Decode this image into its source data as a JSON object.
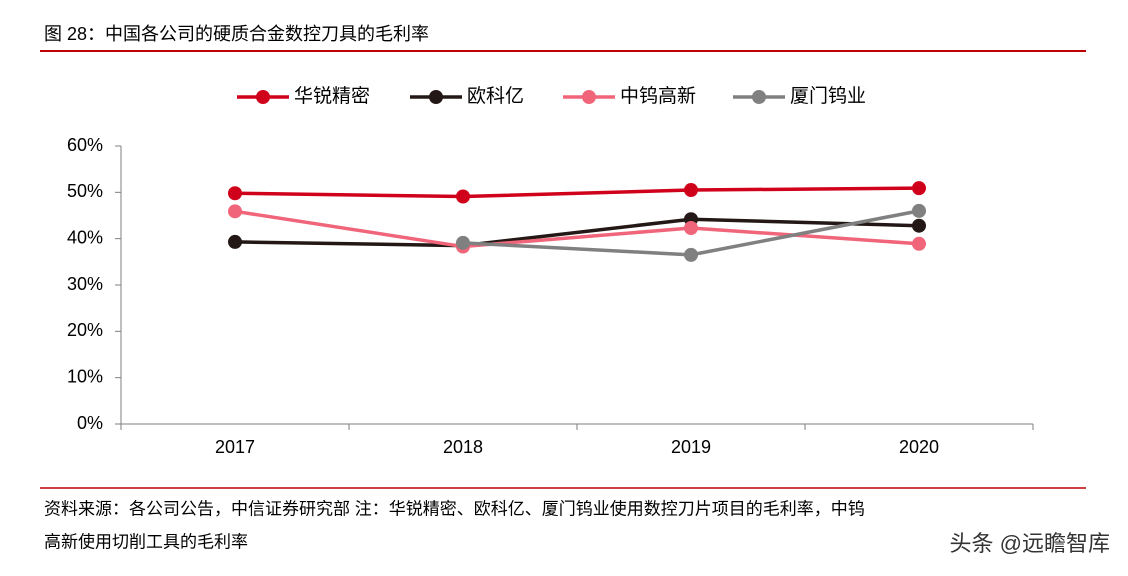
{
  "title": "图 28：中国各公司的硬质合金数控刀具的毛利率",
  "chart_data": {
    "type": "line",
    "categories": [
      "2017",
      "2018",
      "2019",
      "2020"
    ],
    "series": [
      {
        "name": "华锐精密",
        "color": "#d0021b",
        "values": [
          49.8,
          49.1,
          50.5,
          50.9
        ]
      },
      {
        "name": "欧科亿",
        "color": "#231815",
        "values": [
          39.3,
          38.5,
          44.2,
          42.8
        ]
      },
      {
        "name": "中钨高新",
        "color": "#f0657a",
        "values": [
          45.9,
          38.3,
          42.3,
          38.9
        ]
      },
      {
        "name": "厦门钨业",
        "color": "#808080",
        "values": [
          null,
          39.1,
          36.5,
          46.0
        ]
      }
    ],
    "ylim": [
      0,
      60
    ],
    "yticks": [
      {
        "value": 0,
        "label": "0%"
      },
      {
        "value": 10,
        "label": "10%"
      },
      {
        "value": 20,
        "label": "20%"
      },
      {
        "value": 30,
        "label": "30%"
      },
      {
        "value": 40,
        "label": "40%"
      },
      {
        "value": 50,
        "label": "50%"
      },
      {
        "value": 60,
        "label": "60%"
      }
    ],
    "legend": "top"
  },
  "notes": [
    "资料来源：各公司公告，中信证券研究部 注：华锐精密、欧科亿、厦门钨业使用数控刀片项目的毛利率，中钨",
    "高新使用切削工具的毛利率"
  ],
  "watermark": "头条 @远瞻智库"
}
